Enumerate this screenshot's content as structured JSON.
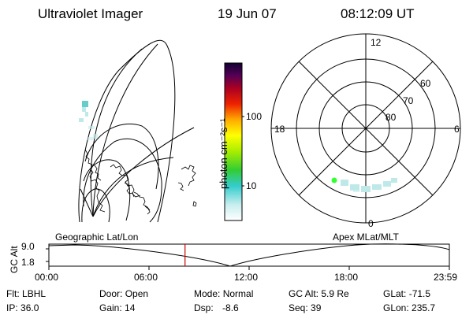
{
  "header": {
    "instrument": "Ultraviolet Imager",
    "date": "19 Jun 07",
    "time": "08:12:09 UT"
  },
  "colorbar": {
    "unit_label": "photon cm⁻²s⁻¹",
    "ticks": [
      "100",
      "10"
    ]
  },
  "polar": {
    "mlt_labels": {
      "top": "12",
      "left": "18",
      "right": "6",
      "bottom": "0"
    },
    "lat_labels": [
      "60",
      "70",
      "80"
    ]
  },
  "timeline": {
    "left_title": "Geographic Lat/Lon",
    "right_title": "Apex MLat/MLT",
    "axis_title": "GC Alt",
    "y_ticks": [
      "9.0",
      "1.8"
    ],
    "x_ticks": [
      "00:00",
      "06:00",
      "12:00",
      "18:00",
      "23:59"
    ],
    "current_time_fraction": 0.34
  },
  "info": {
    "filter": {
      "label": "Flt:",
      "value": "LBHL"
    },
    "ip": {
      "label": "IP:",
      "value": "36.0"
    },
    "door": {
      "label": "Door:",
      "value": "Open"
    },
    "gain": {
      "label": "Gain:",
      "value": "14"
    },
    "mode": {
      "label": "Mode:",
      "value": "Normal"
    },
    "dsp": {
      "label": "Dsp:",
      "value": "-8.6"
    },
    "gc_alt": {
      "label": "GC Alt:",
      "value": "5.9 Re"
    },
    "seq": {
      "label": "Seq:",
      "value": "39"
    },
    "glat": {
      "label": "GLat:",
      "value": "-71.5"
    },
    "glon": {
      "label": "GLon:",
      "value": "235.7"
    }
  },
  "colors": {
    "marker": "#33ff33",
    "current_time": "#cc0000",
    "aurora": "#bfe9e9"
  }
}
